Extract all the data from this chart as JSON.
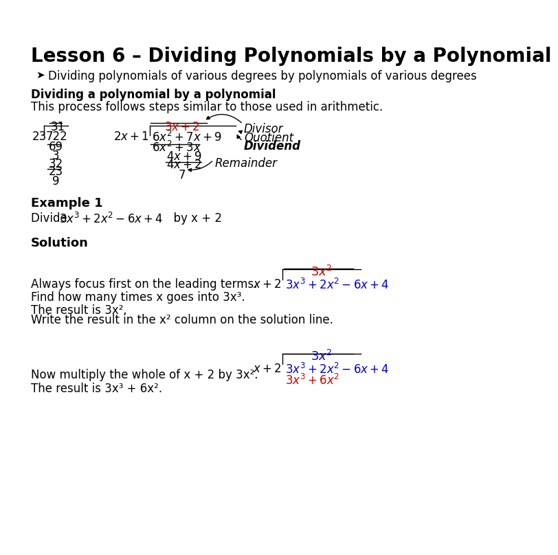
{
  "title": "Lesson 6 – Dividing Polynomials by a Polynomial",
  "bullet": "Dividing polynomials of various degrees by polynomials of various degrees",
  "section1_bold": "Dividing a polynomial by a polynomial",
  "section1_text": "This process follows steps similar to those used in arithmetic.",
  "example1_bold": "Example 1",
  "solution_bold": "Solution",
  "sol_text1": "Always focus first on the leading terms.",
  "sol_text2": "Find how many times x goes into 3x³.",
  "sol_text3a": "The result is 3x².",
  "sol_text3b": "Write the result in the x² column on the solution line.",
  "sol_text4": "Now multiply the whole of x + 2 by 3x².",
  "sol_text5": "The result is 3x³ + 6x².",
  "bg_color": "#ffffff",
  "text_color": "#000000",
  "red_color": "#cc0000",
  "blue_color": "#0000cc"
}
